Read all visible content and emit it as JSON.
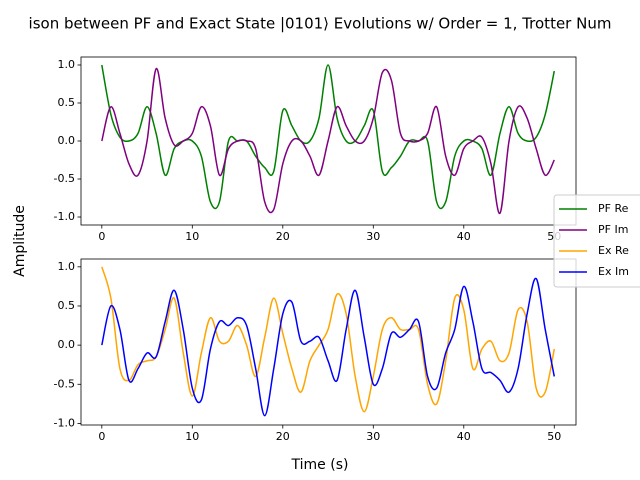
{
  "chart_data": [
    {
      "type": "line",
      "title": "ison between PF and Exact State |0101⟩ Evolutions w/ Order = 1, Trotter Num",
      "ylabel": "Amplitude",
      "x": [
        0,
        1,
        2,
        3,
        4,
        5,
        6,
        7,
        8,
        9,
        10,
        11,
        12,
        13,
        14,
        15,
        16,
        17,
        18,
        19,
        20,
        21,
        22,
        23,
        24,
        25,
        26,
        27,
        28,
        29,
        30,
        31,
        32,
        33,
        34,
        35,
        36,
        37,
        38,
        39,
        40,
        41,
        42,
        43,
        44,
        45,
        46,
        47,
        48,
        49,
        50
      ],
      "series": [
        {
          "name": "PF Re",
          "color": "#008000",
          "values": [
            1.0,
            0.35,
            0.05,
            0,
            0.1,
            0.45,
            0.1,
            -0.45,
            -0.1,
            0,
            0,
            -0.2,
            -0.8,
            -0.8,
            0,
            0,
            0,
            -0.2,
            -0.35,
            -0.4,
            0.4,
            0.2,
            0,
            0,
            0.3,
            1.0,
            0.3,
            0,
            0,
            0.2,
            0.4,
            -0.4,
            -0.35,
            -0.2,
            0,
            0,
            0,
            -0.8,
            -0.8,
            -0.2,
            0,
            0,
            -0.1,
            -0.45,
            0.1,
            0.45,
            0.1,
            0,
            0.05,
            0.35,
            0.92
          ]
        },
        {
          "name": "PF Im",
          "color": "#800080",
          "values": [
            0,
            0.45,
            0.1,
            -0.3,
            -0.45,
            0,
            0.95,
            0.3,
            -0.05,
            0,
            0.1,
            0.45,
            0.2,
            -0.45,
            -0.1,
            0,
            0,
            -0.1,
            -0.8,
            -0.9,
            -0.3,
            0,
            0,
            -0.2,
            -0.45,
            0,
            0.45,
            0.2,
            0,
            0,
            0.3,
            0.9,
            0.8,
            0.1,
            0,
            0,
            0.1,
            0.45,
            -0.2,
            -0.45,
            -0.1,
            0,
            0.05,
            -0.3,
            -0.95,
            0,
            0.45,
            0.3,
            -0.1,
            -0.45,
            -0.25
          ]
        }
      ],
      "xlim": [
        -2.3,
        52.4
      ],
      "xticks": [
        0,
        10,
        20,
        30,
        40,
        50
      ],
      "ylim": [
        -1.105,
        1.105
      ],
      "yticks": [
        {
          "value": -1,
          "label": "-1.0"
        },
        -0.5,
        {
          "value": 0,
          "label": "0.0"
        },
        0.5,
        {
          "value": 1,
          "label": "1.0"
        }
      ],
      "legend": "center right"
    },
    {
      "type": "line",
      "xlabel": "Time (s)",
      "x": [
        0,
        1,
        2,
        3,
        4,
        5,
        6,
        7,
        8,
        9,
        10,
        11,
        12,
        13,
        14,
        15,
        16,
        17,
        18,
        19,
        20,
        21,
        22,
        23,
        24,
        25,
        26,
        27,
        28,
        29,
        30,
        31,
        32,
        33,
        34,
        35,
        36,
        37,
        38,
        39,
        40,
        41,
        42,
        43,
        44,
        45,
        46,
        47,
        48,
        49,
        50
      ],
      "series": [
        {
          "name": "Ex Re",
          "color": "#ffa500",
          "values": [
            1.0,
            0.6,
            -0.3,
            -0.45,
            -0.25,
            -0.2,
            -0.15,
            0.2,
            0.6,
            -0.1,
            -0.65,
            -0.1,
            0.35,
            0.05,
            0.05,
            0.25,
            0.0,
            -0.4,
            0.1,
            0.6,
            0.15,
            -0.3,
            -0.6,
            -0.2,
            0,
            0.2,
            0.65,
            0.4,
            -0.4,
            -0.85,
            -0.4,
            0.2,
            0.35,
            0.2,
            0.2,
            0.2,
            -0.5,
            -0.75,
            -0.2,
            0.6,
            0.45,
            -0.3,
            -0.05,
            0.05,
            -0.2,
            -0.1,
            0.45,
            0.3,
            -0.55,
            -0.6,
            -0.05
          ]
        },
        {
          "name": "Ex Im",
          "color": "#0000ff",
          "values": [
            0,
            0.5,
            0.2,
            -0.45,
            -0.3,
            -0.1,
            -0.15,
            0.3,
            0.7,
            0.2,
            -0.55,
            -0.7,
            -0.05,
            0.3,
            0.25,
            0.35,
            0.25,
            -0.3,
            -0.9,
            -0.3,
            0.4,
            0.55,
            0.05,
            0.05,
            0.1,
            -0.2,
            -0.45,
            0.2,
            0.7,
            0.1,
            -0.5,
            -0.3,
            0.15,
            0.1,
            0.2,
            0.3,
            -0.4,
            -0.55,
            -0.1,
            0.2,
            0.75,
            0.3,
            -0.3,
            -0.35,
            -0.45,
            -0.6,
            -0.3,
            0.4,
            0.85,
            0.2,
            -0.4
          ]
        }
      ],
      "xlim": [
        -2.3,
        52.4
      ],
      "xticks": [
        0,
        10,
        20,
        30,
        40,
        50
      ],
      "ylim": [
        -1.02,
        1.1
      ],
      "yticks": [
        {
          "value": -1,
          "label": "-1.0"
        },
        -0.5,
        {
          "value": 0,
          "label": "0.0"
        },
        0.5,
        {
          "value": 1,
          "label": "1.0"
        }
      ]
    }
  ]
}
